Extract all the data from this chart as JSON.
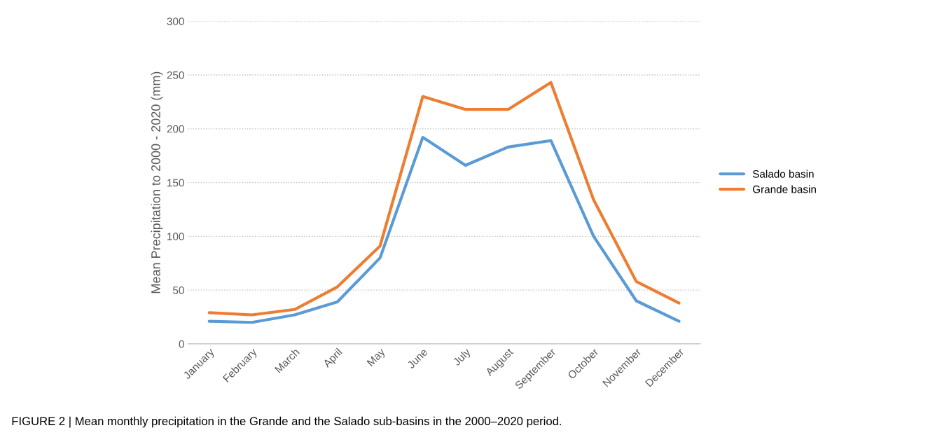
{
  "chart_data": {
    "type": "line",
    "ylabel": "Mean Precipitation to 2000 - 2020 (mm)",
    "categories": [
      "January",
      "February",
      "March",
      "April",
      "May",
      "June",
      "July",
      "August",
      "September",
      "October",
      "November",
      "December"
    ],
    "series": [
      {
        "name": "Salado basin",
        "color": "#5b9bd5",
        "values": [
          21,
          20,
          27,
          39,
          80,
          192,
          166,
          183,
          189,
          100,
          40,
          21
        ]
      },
      {
        "name": "Grande basin",
        "color": "#ed7d31",
        "values": [
          29,
          27,
          32,
          53,
          91,
          230,
          218,
          218,
          243,
          134,
          58,
          38
        ]
      }
    ],
    "ylim": [
      0,
      300
    ],
    "yticks": [
      0,
      50,
      100,
      150,
      200,
      250,
      300
    ],
    "grid": "y",
    "legend": "right",
    "marker": "none",
    "line_style": "solid",
    "annotations": [
      "FIGURE 2 | Mean monthly precipitation in the Grande and the Salado sub-basins in the 2000–2020 period."
    ]
  }
}
